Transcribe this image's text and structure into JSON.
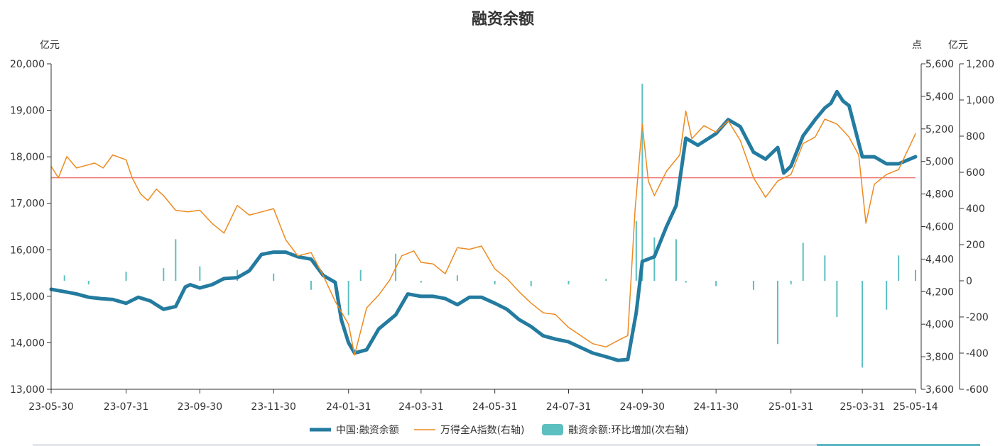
{
  "chart_data": {
    "type": "line",
    "title": "融资余额",
    "units": {
      "left": "亿元",
      "right_inner": "点",
      "right_outer": "亿元"
    },
    "x_ticks": [
      "23-05-30",
      "23-07-31",
      "23-09-30",
      "23-11-30",
      "24-01-31",
      "24-03-31",
      "24-05-31",
      "24-07-31",
      "24-09-30",
      "24-11-30",
      "25-01-31",
      "25-03-31",
      "25-05-14"
    ],
    "y_left": {
      "min": 13000,
      "max": 20000,
      "ticks": [
        "13,000",
        "14,000",
        "15,000",
        "16,000",
        "17,000",
        "18,000",
        "19,000",
        "20,000"
      ]
    },
    "y_right_inner": {
      "min": 3600,
      "max": 5600,
      "ticks": [
        "3,600",
        "3,800",
        "4,000",
        "4,200",
        "4,400",
        "4,600",
        "4,800",
        "5,000",
        "5,200",
        "5,400",
        "5,600"
      ]
    },
    "y_right_outer": {
      "min": -600,
      "max": 1200,
      "ticks": [
        "-600",
        "-400",
        "-200",
        "0",
        "200",
        "400",
        "600",
        "800",
        "1,000",
        "1,200"
      ]
    },
    "reference_line": {
      "axis": "left",
      "value": 17550,
      "color": "#ee7a7a"
    },
    "series": [
      {
        "name": "中国:融资余额",
        "axis": "left",
        "style": "line",
        "color": "#247ba0",
        "points": [
          [
            "23-05-30",
            15150
          ],
          [
            "23-06-10",
            15100
          ],
          [
            "23-06-20",
            15050
          ],
          [
            "23-06-30",
            14980
          ],
          [
            "23-07-10",
            14950
          ],
          [
            "23-07-20",
            14930
          ],
          [
            "23-07-31",
            14850
          ],
          [
            "23-08-10",
            14980
          ],
          [
            "23-08-20",
            14900
          ],
          [
            "23-08-31",
            14720
          ],
          [
            "23-09-10",
            14780
          ],
          [
            "23-09-18",
            15200
          ],
          [
            "23-09-22",
            15250
          ],
          [
            "23-09-30",
            15180
          ],
          [
            "23-10-10",
            15250
          ],
          [
            "23-10-20",
            15380
          ],
          [
            "23-10-31",
            15400
          ],
          [
            "23-11-10",
            15550
          ],
          [
            "23-11-20",
            15900
          ],
          [
            "23-11-30",
            15950
          ],
          [
            "23-12-10",
            15950
          ],
          [
            "23-12-20",
            15850
          ],
          [
            "23-12-31",
            15800
          ],
          [
            "24-01-10",
            15450
          ],
          [
            "24-01-20",
            15300
          ],
          [
            "24-01-25",
            14500
          ],
          [
            "24-01-31",
            14000
          ],
          [
            "24-02-05",
            13780
          ],
          [
            "24-02-15",
            13850
          ],
          [
            "24-02-25",
            14300
          ],
          [
            "24-03-10",
            14600
          ],
          [
            "24-03-20",
            15050
          ],
          [
            "24-03-31",
            15000
          ],
          [
            "24-04-10",
            15000
          ],
          [
            "24-04-20",
            14950
          ],
          [
            "24-04-30",
            14820
          ],
          [
            "24-05-10",
            14980
          ],
          [
            "24-05-20",
            14980
          ],
          [
            "24-05-31",
            14850
          ],
          [
            "24-06-10",
            14720
          ],
          [
            "24-06-20",
            14500
          ],
          [
            "24-06-30",
            14350
          ],
          [
            "24-07-10",
            14150
          ],
          [
            "24-07-20",
            14080
          ],
          [
            "24-07-31",
            14020
          ],
          [
            "24-08-10",
            13900
          ],
          [
            "24-08-20",
            13780
          ],
          [
            "24-08-31",
            13700
          ],
          [
            "24-09-10",
            13620
          ],
          [
            "24-09-18",
            13640
          ],
          [
            "24-09-25",
            14650
          ],
          [
            "24-09-30",
            15750
          ],
          [
            "24-10-10",
            15850
          ],
          [
            "24-10-20",
            16500
          ],
          [
            "24-10-28",
            16950
          ],
          [
            "24-11-05",
            18400
          ],
          [
            "24-11-15",
            18250
          ],
          [
            "24-11-30",
            18500
          ],
          [
            "24-12-10",
            18800
          ],
          [
            "24-12-20",
            18650
          ],
          [
            "24-12-31",
            18100
          ],
          [
            "25-01-10",
            17950
          ],
          [
            "25-01-20",
            18200
          ],
          [
            "25-01-25",
            17650
          ],
          [
            "25-01-31",
            17800
          ],
          [
            "25-02-10",
            18450
          ],
          [
            "25-02-20",
            18800
          ],
          [
            "25-02-28",
            19050
          ],
          [
            "25-03-05",
            19150
          ],
          [
            "25-03-10",
            19400
          ],
          [
            "25-03-15",
            19200
          ],
          [
            "25-03-20",
            19100
          ],
          [
            "25-03-31",
            18000
          ],
          [
            "25-04-10",
            18000
          ],
          [
            "25-04-20",
            17850
          ],
          [
            "25-04-30",
            17850
          ],
          [
            "25-05-14",
            18000
          ]
        ]
      },
      {
        "name": "万得全A指数(右轴)",
        "axis": "right_inner",
        "style": "line",
        "color": "#ee8a1f",
        "points": [
          [
            "23-05-30",
            4970
          ],
          [
            "23-06-05",
            4900
          ],
          [
            "23-06-12",
            5030
          ],
          [
            "23-06-20",
            4960
          ],
          [
            "23-06-30",
            4980
          ],
          [
            "23-07-05",
            4990
          ],
          [
            "23-07-12",
            4960
          ],
          [
            "23-07-20",
            5040
          ],
          [
            "23-07-31",
            5010
          ],
          [
            "23-08-05",
            4900
          ],
          [
            "23-08-12",
            4800
          ],
          [
            "23-08-18",
            4760
          ],
          [
            "23-08-25",
            4830
          ],
          [
            "23-08-31",
            4790
          ],
          [
            "23-09-10",
            4700
          ],
          [
            "23-09-20",
            4690
          ],
          [
            "23-09-30",
            4700
          ],
          [
            "23-10-10",
            4620
          ],
          [
            "23-10-20",
            4560
          ],
          [
            "23-10-31",
            4730
          ],
          [
            "23-11-10",
            4670
          ],
          [
            "23-11-20",
            4690
          ],
          [
            "23-11-30",
            4710
          ],
          [
            "23-12-10",
            4520
          ],
          [
            "23-12-20",
            4420
          ],
          [
            "23-12-31",
            4440
          ],
          [
            "24-01-10",
            4300
          ],
          [
            "24-01-20",
            4140
          ],
          [
            "24-01-31",
            4000
          ],
          [
            "24-02-05",
            3810
          ],
          [
            "24-02-15",
            4100
          ],
          [
            "24-02-25",
            4180
          ],
          [
            "24-03-05",
            4270
          ],
          [
            "24-03-15",
            4420
          ],
          [
            "24-03-25",
            4450
          ],
          [
            "24-03-31",
            4380
          ],
          [
            "24-04-10",
            4370
          ],
          [
            "24-04-20",
            4310
          ],
          [
            "24-04-30",
            4470
          ],
          [
            "24-05-10",
            4460
          ],
          [
            "24-05-20",
            4480
          ],
          [
            "24-05-31",
            4340
          ],
          [
            "24-06-10",
            4280
          ],
          [
            "24-06-20",
            4200
          ],
          [
            "24-06-30",
            4130
          ],
          [
            "24-07-10",
            4070
          ],
          [
            "24-07-20",
            4060
          ],
          [
            "24-07-31",
            3980
          ],
          [
            "24-08-10",
            3930
          ],
          [
            "24-08-20",
            3880
          ],
          [
            "24-08-31",
            3860
          ],
          [
            "24-09-10",
            3900
          ],
          [
            "24-09-18",
            3930
          ],
          [
            "24-09-24",
            4700
          ],
          [
            "24-09-30",
            5230
          ],
          [
            "24-10-05",
            4880
          ],
          [
            "24-10-10",
            4790
          ],
          [
            "24-10-20",
            4940
          ],
          [
            "24-10-31",
            5040
          ],
          [
            "24-11-05",
            5310
          ],
          [
            "24-11-10",
            5140
          ],
          [
            "24-11-20",
            5220
          ],
          [
            "24-11-30",
            5180
          ],
          [
            "24-12-10",
            5250
          ],
          [
            "24-12-20",
            5130
          ],
          [
            "24-12-31",
            4900
          ],
          [
            "25-01-10",
            4780
          ],
          [
            "25-01-20",
            4880
          ],
          [
            "25-01-31",
            4920
          ],
          [
            "25-02-10",
            5110
          ],
          [
            "25-02-20",
            5150
          ],
          [
            "25-02-28",
            5260
          ],
          [
            "25-03-10",
            5230
          ],
          [
            "25-03-20",
            5150
          ],
          [
            "25-03-28",
            5040
          ],
          [
            "25-04-03",
            4620
          ],
          [
            "25-04-10",
            4860
          ],
          [
            "25-04-20",
            4920
          ],
          [
            "25-04-30",
            4950
          ],
          [
            "25-05-14",
            5170
          ]
        ]
      },
      {
        "name": "融资余额:环比增加(次右轴)",
        "axis": "right_outer",
        "style": "bar",
        "color": "#5cbfc0",
        "points": [
          [
            "23-06-10",
            30
          ],
          [
            "23-06-30",
            -20
          ],
          [
            "23-07-31",
            50
          ],
          [
            "23-08-31",
            70
          ],
          [
            "23-09-10",
            230
          ],
          [
            "23-09-30",
            80
          ],
          [
            "23-10-31",
            60
          ],
          [
            "23-11-30",
            40
          ],
          [
            "23-12-31",
            -50
          ],
          [
            "24-01-31",
            -190
          ],
          [
            "24-02-10",
            60
          ],
          [
            "24-03-10",
            150
          ],
          [
            "24-03-31",
            -10
          ],
          [
            "24-04-30",
            30
          ],
          [
            "24-05-31",
            -20
          ],
          [
            "24-06-30",
            -30
          ],
          [
            "24-07-31",
            -20
          ],
          [
            "24-08-31",
            10
          ],
          [
            "24-09-25",
            330
          ],
          [
            "24-09-30",
            1090
          ],
          [
            "24-10-10",
            240
          ],
          [
            "24-10-28",
            230
          ],
          [
            "24-11-05",
            -10
          ],
          [
            "24-11-30",
            -30
          ],
          [
            "24-12-31",
            -50
          ],
          [
            "25-01-20",
            -350
          ],
          [
            "25-01-31",
            -20
          ],
          [
            "25-02-10",
            210
          ],
          [
            "25-02-28",
            140
          ],
          [
            "25-03-10",
            -200
          ],
          [
            "25-03-31",
            -480
          ],
          [
            "25-04-20",
            -160
          ],
          [
            "25-04-30",
            140
          ],
          [
            "25-05-14",
            60
          ]
        ]
      }
    ],
    "legend_position": "bottom",
    "grid": false
  }
}
